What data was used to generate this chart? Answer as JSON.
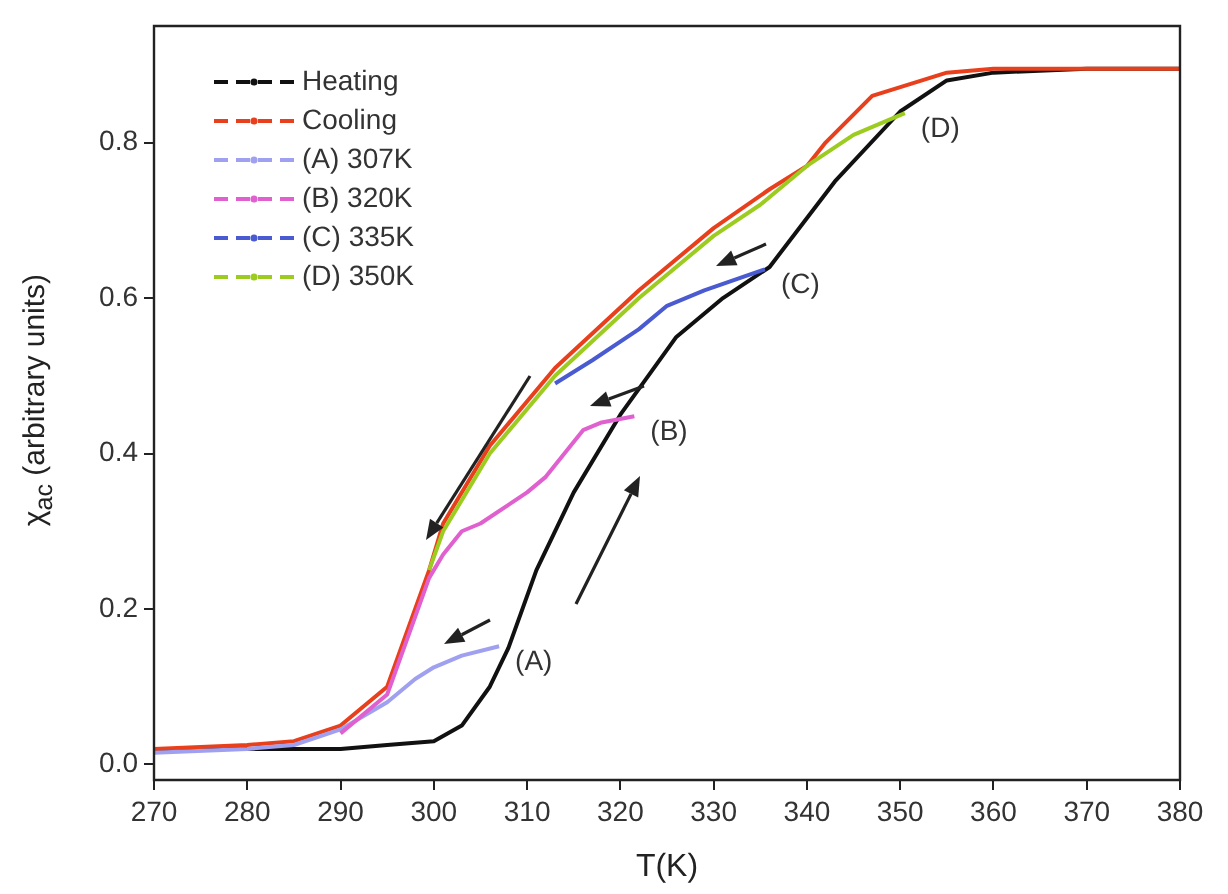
{
  "chart_data": {
    "type": "line",
    "xlabel": "T(K)",
    "ylabel": "χ$_{ac}$ (arbitrary units)",
    "xlim": [
      270,
      380
    ],
    "ylim": [
      -0.02,
      0.95
    ],
    "xticks": [
      270,
      280,
      290,
      300,
      310,
      320,
      330,
      340,
      350,
      360,
      370,
      380
    ],
    "yticks": [
      {
        "value": 0,
        "label": "0.0"
      },
      0.2,
      0.4,
      0.6,
      0.8
    ],
    "grid": false,
    "legend": "top left",
    "marker": "none",
    "line_style": "solid",
    "series": [
      {
        "name": "Heating",
        "color": "#111111",
        "x": [
          270,
          280,
          290,
          295,
          300,
          303,
          306,
          308,
          311,
          315,
          320,
          326,
          331,
          336,
          343,
          350,
          355,
          360,
          370,
          380
        ],
        "values": [
          0.02,
          0.02,
          0.02,
          0.025,
          0.03,
          0.05,
          0.1,
          0.15,
          0.25,
          0.35,
          0.45,
          0.55,
          0.6,
          0.64,
          0.75,
          0.84,
          0.88,
          0.89,
          0.895,
          0.895
        ]
      },
      {
        "name": "Cooling",
        "color": "#e8401c",
        "x": [
          270,
          280,
          285,
          290,
          295,
          298,
          299.5,
          301,
          306,
          313,
          322,
          330,
          336,
          340,
          342,
          347,
          355,
          360,
          370,
          380
        ],
        "values": [
          0.02,
          0.025,
          0.03,
          0.05,
          0.1,
          0.2,
          0.25,
          0.31,
          0.41,
          0.51,
          0.61,
          0.69,
          0.74,
          0.77,
          0.8,
          0.86,
          0.89,
          0.895,
          0.895,
          0.895
        ]
      },
      {
        "name": "(A) 307K",
        "color": "#a0a0f0",
        "x": [
          270,
          280,
          285,
          290,
          295,
          298,
          300,
          303,
          307
        ],
        "values": [
          0.015,
          0.02,
          0.025,
          0.045,
          0.08,
          0.11,
          0.125,
          0.14,
          0.152
        ]
      },
      {
        "name": "(B) 320K",
        "color": "#e060d0",
        "x": [
          290,
          295,
          298,
          299.5,
          301,
          303,
          305,
          310,
          312,
          316,
          318,
          321.5
        ],
        "values": [
          0.04,
          0.09,
          0.19,
          0.24,
          0.27,
          0.3,
          0.31,
          0.35,
          0.37,
          0.43,
          0.44,
          0.448
        ]
      },
      {
        "name": "(C) 335K",
        "color": "#4a5ad0",
        "x": [
          313,
          317,
          322,
          325,
          329,
          335.5
        ],
        "values": [
          0.49,
          0.52,
          0.56,
          0.59,
          0.61,
          0.637
        ]
      },
      {
        "name": "(D) 350K",
        "color": "#9ccc20",
        "x": [
          299.5,
          301,
          306,
          313,
          322,
          330,
          335,
          340,
          345,
          350.5
        ],
        "values": [
          0.25,
          0.3,
          0.4,
          0.5,
          0.6,
          0.68,
          0.72,
          0.77,
          0.81,
          0.838
        ]
      }
    ],
    "annotations": [
      {
        "text": "(A)",
        "x": 307,
        "y": 0.152
      },
      {
        "text": "(B)",
        "x": 321.5,
        "y": 0.448
      },
      {
        "text": "(C)",
        "x": 335.5,
        "y": 0.637
      },
      {
        "text": "(D)",
        "x": 350.5,
        "y": 0.838
      }
    ]
  }
}
